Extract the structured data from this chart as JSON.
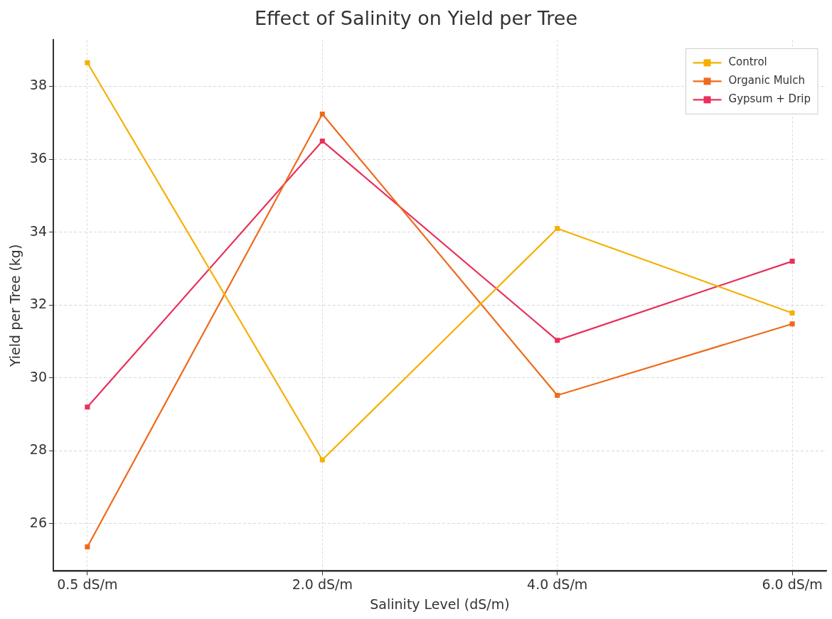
{
  "chart_data": {
    "type": "line",
    "title": "Effect of Salinity on Yield per Tree",
    "xlabel": "Salinity Level (dS/m)",
    "ylabel": "Yield per Tree (kg)",
    "categories": [
      "0.5 dS/m",
      "2.0 dS/m",
      "4.0 dS/m",
      "6.0 dS/m"
    ],
    "series": [
      {
        "name": "Control",
        "color": "#f5b000",
        "values": [
          38.65,
          27.75,
          34.1,
          31.78
        ]
      },
      {
        "name": "Organic Mulch",
        "color": "#ee6a1c",
        "values": [
          25.36,
          37.24,
          29.52,
          31.48
        ]
      },
      {
        "name": "Gypsum + Drip",
        "color": "#e8305a",
        "values": [
          29.2,
          36.5,
          31.03,
          33.2
        ]
      }
    ],
    "ylim": [
      24.7,
      39.27
    ],
    "yticks": [
      26,
      28,
      30,
      32,
      34,
      36,
      38
    ],
    "grid": true,
    "legend": "top right",
    "marker": "square",
    "line_style": "solid"
  }
}
